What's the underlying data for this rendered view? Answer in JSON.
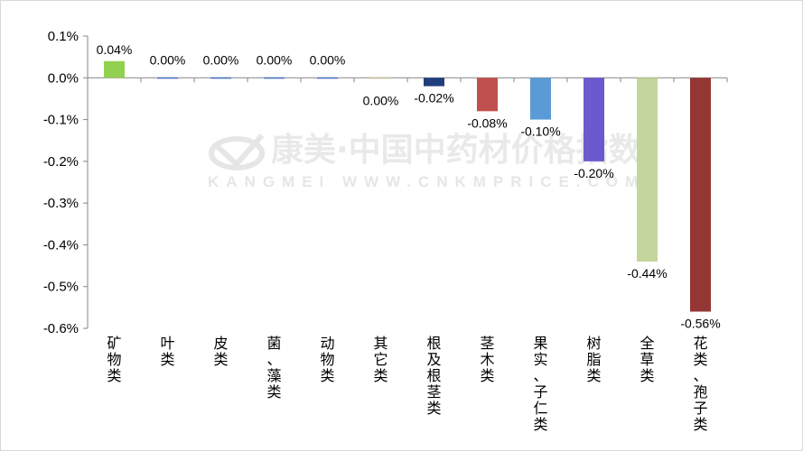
{
  "watermark": {
    "line1": "康美·中国中药材价格指数",
    "line2": "KANGMEI WWW.CNKMPRICE.COM"
  },
  "chart_data": {
    "type": "bar",
    "title": "",
    "xlabel": "",
    "ylabel": "",
    "ylim": [
      -0.6,
      0.1
    ],
    "y_ticks": [
      "0.1%",
      "0.0%",
      "-0.1%",
      "-0.2%",
      "-0.3%",
      "-0.4%",
      "-0.5%",
      "-0.6%"
    ],
    "grid": false,
    "legend": "none",
    "categories": [
      "矿物类",
      "叶类",
      "皮类",
      "菌、藻类",
      "动物类",
      "其它类",
      "根及根茎类",
      "茎木类",
      "果实、子仁类",
      "树脂类",
      "全草类",
      "花类、孢子类"
    ],
    "values": [
      0.04,
      0.0,
      0.0,
      0.0,
      0.0,
      0.0,
      -0.02,
      -0.08,
      -0.1,
      -0.2,
      -0.44,
      -0.56
    ],
    "data_labels": [
      "0.04%",
      "0.00%",
      "0.00%",
      "0.00%",
      "0.00%",
      "0.00%",
      "-0.02%",
      "-0.08%",
      "-0.10%",
      "-0.20%",
      "-0.44%",
      "-0.56%"
    ],
    "colors": [
      "#92d050",
      "#4472c4",
      "#4472c4",
      "#4472c4",
      "#4472c4",
      "#c4bd97",
      "#1f3d7a",
      "#c0504d",
      "#5b9bd5",
      "#6a5acd",
      "#c3d69b",
      "#943634"
    ]
  }
}
